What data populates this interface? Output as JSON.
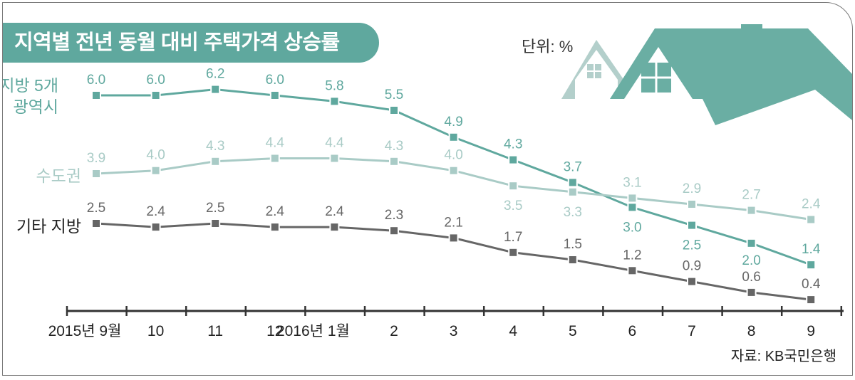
{
  "title": "지역별 전년 동월 대비 주택가격 상승률",
  "unit": "단위: %",
  "source": "자료: KB국민은행",
  "colors": {
    "title_bg": "#5fa89e",
    "metro": "#5fa89e",
    "capital": "#a9cbc6",
    "other": "#666666",
    "house_small": "#b3cfcb",
    "house_big": "#6aaea3"
  },
  "icons": [
    "house-icon"
  ],
  "chart_data": {
    "type": "line",
    "categories": [
      "2015년 9월",
      "10",
      "11",
      "12",
      "2016년 1월",
      "2",
      "3",
      "4",
      "5",
      "6",
      "7",
      "8",
      "9"
    ],
    "ylabel": "",
    "xlabel": "",
    "grid": false,
    "series": [
      {
        "name_lines": [
          "지방 5개",
          "광역시"
        ],
        "color": "#5fa89e",
        "values": [
          6.0,
          6.0,
          6.2,
          6.0,
          5.8,
          5.5,
          4.9,
          4.3,
          3.7,
          3.0,
          2.5,
          2.0,
          1.4
        ],
        "labels": [
          "6.0",
          "6.0",
          "6.2",
          "6.0",
          "5.8",
          "5.5",
          "4.9",
          "4.3",
          "3.7",
          "3.0",
          "2.5",
          "2.0",
          "1.4"
        ]
      },
      {
        "name_lines": [
          "수도권"
        ],
        "color": "#a9cbc6",
        "values": [
          3.9,
          4.0,
          4.3,
          4.4,
          4.4,
          4.3,
          4.0,
          3.5,
          3.3,
          3.1,
          2.9,
          2.7,
          2.4
        ],
        "labels": [
          "3.9",
          "4.0",
          "4.3",
          "4.4",
          "4.4",
          "4.3",
          "4.0",
          "3.5",
          "3.3",
          "3.1",
          "2.9",
          "2.7",
          "2.4"
        ]
      },
      {
        "name_lines": [
          "기타 지방"
        ],
        "color": "#666666",
        "values": [
          2.5,
          2.4,
          2.5,
          2.4,
          2.4,
          2.3,
          2.1,
          1.7,
          1.5,
          1.2,
          0.9,
          0.6,
          0.4
        ],
        "labels": [
          "2.5",
          "2.4",
          "2.5",
          "2.4",
          "2.4",
          "2.3",
          "2.1",
          "1.7",
          "1.5",
          "1.2",
          "0.9",
          "0.6",
          "0.4"
        ]
      }
    ]
  }
}
